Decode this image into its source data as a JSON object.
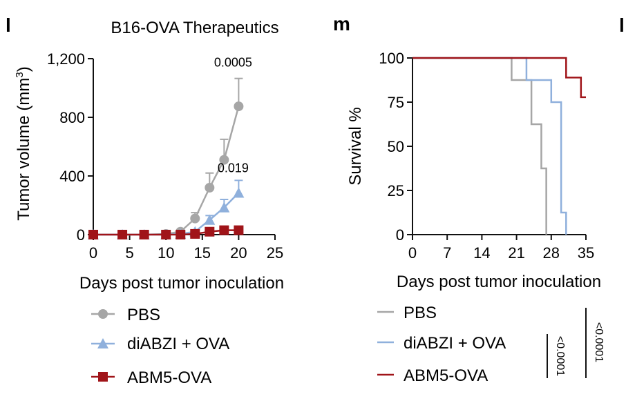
{
  "panels": {
    "left_letter": "l",
    "right_letter": "m",
    "edge_letter": "l"
  },
  "chart_data": [
    {
      "type": "line",
      "title": "B16-OVA Therapeutics",
      "xlabel": "Days post tumor inoculation",
      "ylabel": "Tumor volume (mm",
      "ylabel_sup": "3",
      "ylabel_end": ")",
      "xlim": [
        0,
        25
      ],
      "ylim": [
        0,
        1200
      ],
      "xticks": [
        0,
        5,
        10,
        15,
        20,
        25
      ],
      "xtick_labels": [
        "0",
        "5",
        "10",
        "15",
        "20",
        "25"
      ],
      "yticks": [
        0,
        400,
        800,
        1200
      ],
      "ytick_labels": [
        "0",
        "400",
        "800",
        "1,200"
      ],
      "series": [
        {
          "name": "PBS",
          "color": "#a6a6a6",
          "marker": "circle",
          "x": [
            0,
            4,
            7,
            10,
            12,
            14,
            16,
            18,
            20
          ],
          "y": [
            0,
            0,
            0,
            5,
            20,
            110,
            320,
            510,
            875
          ],
          "err": [
            0,
            0,
            0,
            5,
            10,
            40,
            100,
            140,
            190
          ]
        },
        {
          "name": "diABZI + OVA",
          "color": "#8fb0dc",
          "marker": "triangle",
          "x": [
            0,
            4,
            7,
            10,
            12,
            14,
            16,
            18,
            20
          ],
          "y": [
            0,
            0,
            0,
            0,
            5,
            20,
            100,
            185,
            285
          ],
          "err": [
            0,
            0,
            0,
            0,
            3,
            10,
            30,
            55,
            85
          ]
        },
        {
          "name": "ABM5-OVA",
          "color": "#a01419",
          "marker": "square",
          "x": [
            0,
            4,
            7,
            10,
            12,
            14,
            16,
            18,
            20
          ],
          "y": [
            0,
            0,
            0,
            0,
            0,
            5,
            20,
            30,
            30
          ],
          "err": [
            0,
            0,
            0,
            0,
            0,
            3,
            5,
            8,
            8
          ]
        }
      ],
      "annotations": [
        {
          "text": "0.0005",
          "x": 20,
          "y": 1145
        },
        {
          "text": "0.019",
          "x": 20,
          "y": 425
        }
      ],
      "legend": "bottom"
    },
    {
      "type": "line",
      "step": true,
      "title": "",
      "xlabel": "Days post tumor inoculation",
      "ylabel": "Survival %",
      "xlim": [
        0,
        35
      ],
      "ylim": [
        0,
        100
      ],
      "xticks": [
        0,
        7,
        14,
        21,
        28,
        35
      ],
      "xtick_labels": [
        "0",
        "7",
        "14",
        "21",
        "28",
        "35"
      ],
      "yticks": [
        0,
        25,
        50,
        75,
        100
      ],
      "ytick_labels": [
        "0",
        "25",
        "50",
        "75",
        "100"
      ],
      "series": [
        {
          "name": "PBS",
          "color": "#a6a6a6",
          "x": [
            0,
            20,
            24,
            26,
            27
          ],
          "y": [
            100,
            87.5,
            62.5,
            37.5,
            0
          ]
        },
        {
          "name": "diABZI + OVA",
          "color": "#8fb0dc",
          "x": [
            0,
            23,
            28,
            30,
            31
          ],
          "y": [
            100,
            87.5,
            75,
            12.5,
            0
          ]
        },
        {
          "name": "ABM5-OVA",
          "color": "#a01419",
          "x": [
            0,
            31,
            34,
            35
          ],
          "y": [
            100,
            88.9,
            77.8,
            77.8
          ]
        }
      ],
      "pvalues": [
        {
          "text": "<0.0001",
          "between": [
            "diABZI + OVA",
            "ABM5-OVA"
          ]
        },
        {
          "text": "<0.0001",
          "between": [
            "PBS",
            "ABM5-OVA"
          ]
        }
      ],
      "legend": "bottom"
    }
  ]
}
